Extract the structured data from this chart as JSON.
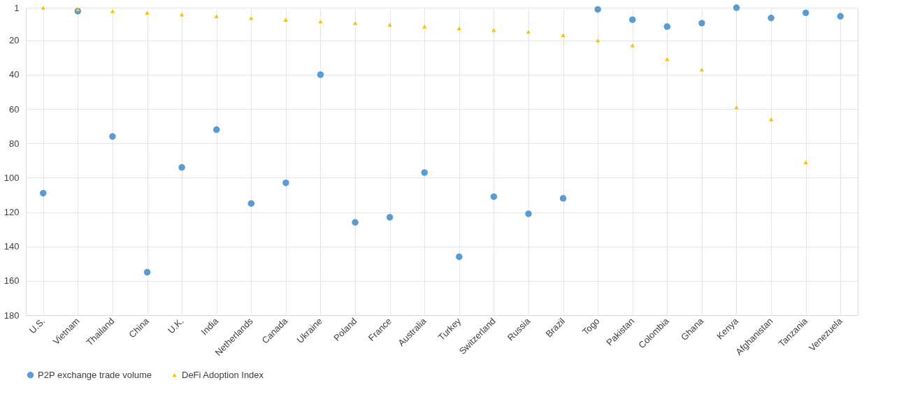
{
  "chart_data": {
    "type": "scatter",
    "categories": [
      "U.S.",
      "Vietnam",
      "Thailand",
      "China",
      "U.K.",
      "India",
      "Netherlands",
      "Canada",
      "Ukraine",
      "Poland",
      "France",
      "Australia",
      "Turkey",
      "Switzerland",
      "Russia",
      "Brazil",
      "Togo",
      "Pakistan",
      "Colombia",
      "Ghana",
      "Kenya",
      "Afghanistan",
      "Tanzania",
      "Venezuela"
    ],
    "series": [
      {
        "name": "P2P exchange trade volume",
        "color": "#5b9bd5",
        "marker": "circle",
        "values": [
          109,
          3,
          76,
          155,
          94,
          72,
          115,
          103,
          40,
          126,
          123,
          97,
          146,
          111,
          121,
          112,
          2,
          8,
          12,
          10,
          1,
          7,
          4,
          6
        ]
      },
      {
        "name": "DeFi Adoption Index",
        "color": "#ffc000",
        "marker": "triangle",
        "values": [
          1,
          2,
          3,
          4,
          5,
          6,
          7,
          8,
          9,
          10,
          11,
          12,
          13,
          14,
          15,
          17,
          20,
          23,
          31,
          37,
          59,
          66,
          91,
          null
        ]
      }
    ],
    "ylim": [
      180,
      1
    ],
    "yticks": [
      1,
      20,
      40,
      60,
      80,
      100,
      120,
      140,
      160,
      180
    ],
    "grid": true,
    "legend": "bottom"
  }
}
